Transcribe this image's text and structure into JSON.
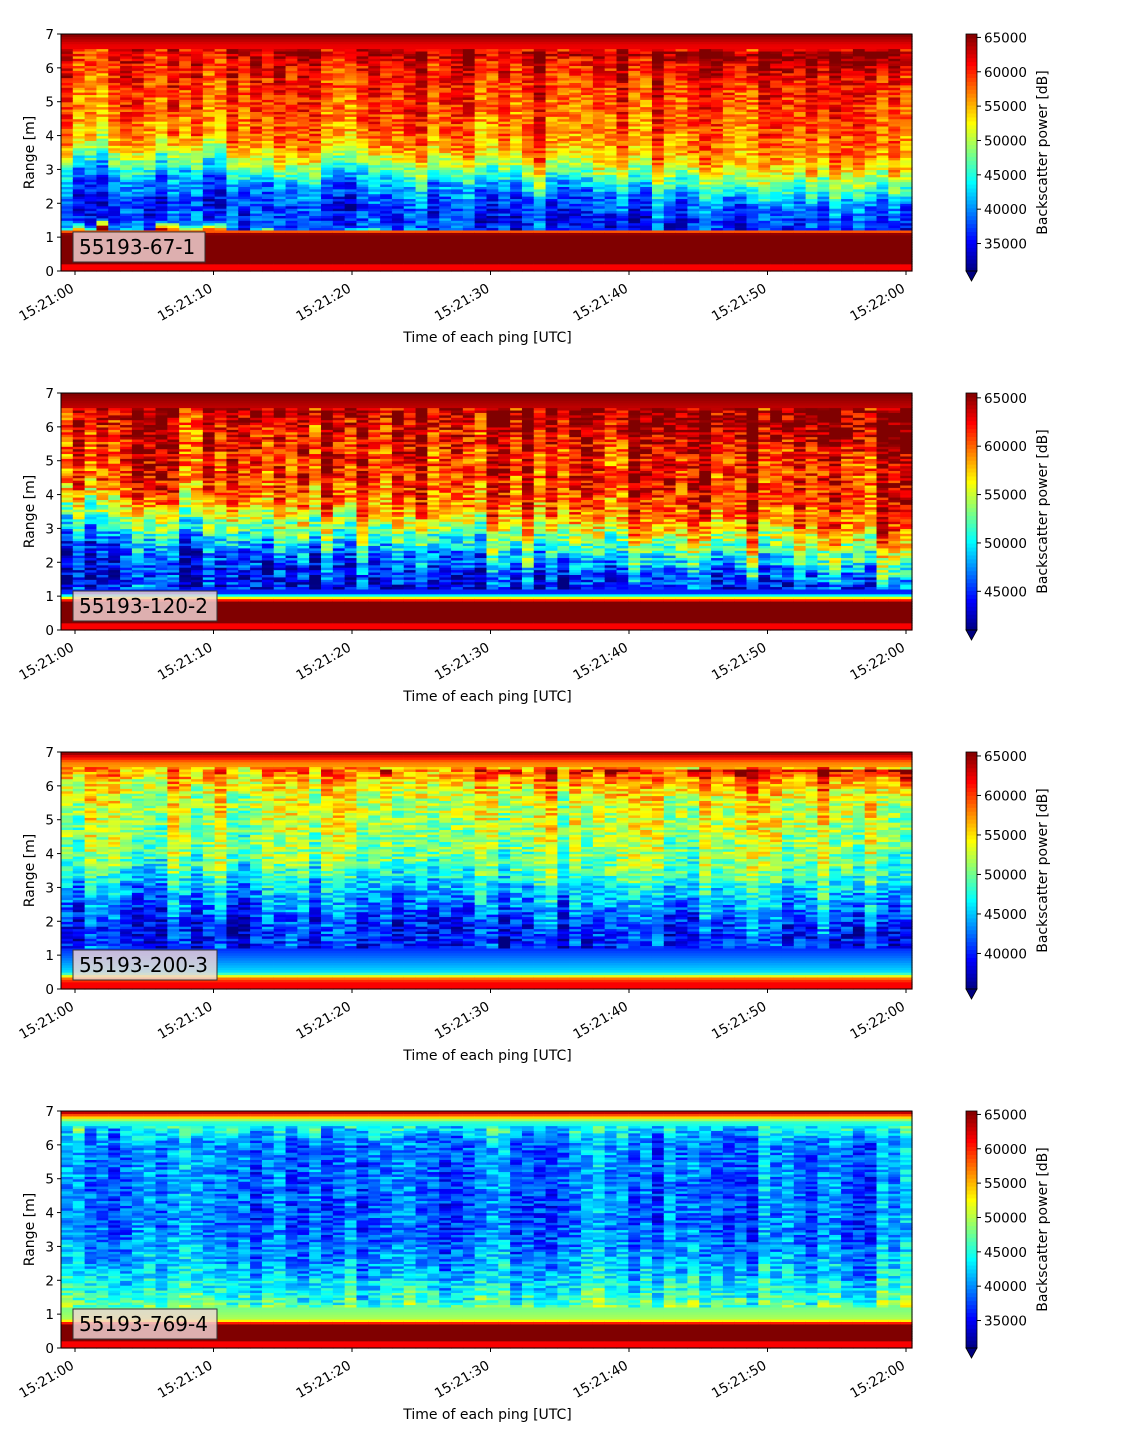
{
  "chart_data": [
    {
      "type": "heatmap",
      "panel_label": "55193-67-1",
      "xlabel": "Time of each ping [UTC]",
      "ylabel": "Range [m]",
      "x_range": [
        "15:21:00",
        "15:22:00"
      ],
      "x_ticks": [
        "15:21:00",
        "15:21:10",
        "15:21:20",
        "15:21:30",
        "15:21:40",
        "15:21:50",
        "15:22:00"
      ],
      "ylim": [
        0,
        7
      ],
      "y_ticks": [
        0,
        1,
        2,
        3,
        4,
        5,
        6,
        7
      ],
      "colormap": "jet",
      "colorbar": {
        "label": "Backscatter power [dB]",
        "vmin": 31000,
        "vmax": 65500,
        "ticks": [
          35000,
          40000,
          45000,
          50000,
          55000,
          60000,
          65000
        ],
        "extend": "min"
      },
      "profile": [
        {
          "range": 0.25,
          "value": 65500
        },
        {
          "range": 1.1,
          "value": 65500
        },
        {
          "range": 1.4,
          "value": 38000
        },
        {
          "range": 2.0,
          "value": 36000
        },
        {
          "range": 2.8,
          "value": 40000
        },
        {
          "range": 3.3,
          "value": 47000
        },
        {
          "range": 4.0,
          "value": 56000
        },
        {
          "range": 5.0,
          "value": 58500
        },
        {
          "range": 6.0,
          "value": 60000
        },
        {
          "range": 6.7,
          "value": 62000
        },
        {
          "range": 7.0,
          "value": 65500
        }
      ],
      "layer_boundary_start_m": 3.2,
      "layer_boundary_end_m": 2.3
    },
    {
      "type": "heatmap",
      "panel_label": "55193-120-2",
      "xlabel": "Time of each ping [UTC]",
      "ylabel": "Range [m]",
      "x_range": [
        "15:21:00",
        "15:22:00"
      ],
      "x_ticks": [
        "15:21:00",
        "15:21:10",
        "15:21:20",
        "15:21:30",
        "15:21:40",
        "15:21:50",
        "15:22:00"
      ],
      "ylim": [
        0,
        7
      ],
      "y_ticks": [
        0,
        1,
        2,
        3,
        4,
        5,
        6,
        7
      ],
      "colormap": "jet",
      "colorbar": {
        "label": "Backscatter power [dB]",
        "vmin": 41000,
        "vmax": 65500,
        "ticks": [
          45000,
          50000,
          55000,
          60000,
          65000
        ],
        "extend": "min"
      },
      "profile": [
        {
          "range": 0.25,
          "value": 65500
        },
        {
          "range": 0.85,
          "value": 65500
        },
        {
          "range": 1.1,
          "value": 45000
        },
        {
          "range": 1.8,
          "value": 44000
        },
        {
          "range": 2.6,
          "value": 47000
        },
        {
          "range": 3.3,
          "value": 53000
        },
        {
          "range": 4.2,
          "value": 60000
        },
        {
          "range": 5.2,
          "value": 62000
        },
        {
          "range": 6.2,
          "value": 62500
        },
        {
          "range": 7.0,
          "value": 65500
        }
      ],
      "layer_boundary_start_m": 3.2,
      "layer_boundary_end_m": 2.0
    },
    {
      "type": "heatmap",
      "panel_label": "55193-200-3",
      "xlabel": "Time of each ping [UTC]",
      "ylabel": "Range [m]",
      "x_range": [
        "15:21:00",
        "15:22:00"
      ],
      "x_ticks": [
        "15:21:00",
        "15:21:10",
        "15:21:20",
        "15:21:30",
        "15:21:40",
        "15:21:50",
        "15:22:00"
      ],
      "ylim": [
        0,
        7
      ],
      "y_ticks": [
        0,
        1,
        2,
        3,
        4,
        5,
        6,
        7
      ],
      "colormap": "jet",
      "colorbar": {
        "label": "Backscatter power [dB]",
        "vmin": 35500,
        "vmax": 65500,
        "ticks": [
          40000,
          45000,
          50000,
          55000,
          60000,
          65000
        ],
        "extend": "min"
      },
      "profile": [
        {
          "range": 0.1,
          "value": 62000
        },
        {
          "range": 0.3,
          "value": 60000
        },
        {
          "range": 0.5,
          "value": 46000
        },
        {
          "range": 1.2,
          "value": 40500
        },
        {
          "range": 2.0,
          "value": 40000
        },
        {
          "range": 3.0,
          "value": 44000
        },
        {
          "range": 4.0,
          "value": 50000
        },
        {
          "range": 5.0,
          "value": 52000
        },
        {
          "range": 6.0,
          "value": 53500
        },
        {
          "range": 6.7,
          "value": 58000
        },
        {
          "range": 7.0,
          "value": 65500
        }
      ],
      "layer_boundary_start_m": 3.4,
      "layer_boundary_end_m": 2.8
    },
    {
      "type": "heatmap",
      "panel_label": "55193-769-4",
      "xlabel": "Time of each ping [UTC]",
      "ylabel": "Range [m]",
      "x_range": [
        "15:21:00",
        "15:22:00"
      ],
      "x_ticks": [
        "15:21:00",
        "15:21:10",
        "15:21:20",
        "15:21:30",
        "15:21:40",
        "15:21:50",
        "15:22:00"
      ],
      "ylim": [
        0,
        7
      ],
      "y_ticks": [
        0,
        1,
        2,
        3,
        4,
        5,
        6,
        7
      ],
      "colormap": "jet",
      "colorbar": {
        "label": "Backscatter power [dB]",
        "vmin": 31000,
        "vmax": 65500,
        "ticks": [
          35000,
          40000,
          45000,
          50000,
          55000,
          60000,
          65000
        ],
        "extend": "min"
      },
      "profile": [
        {
          "range": 0.25,
          "value": 65500
        },
        {
          "range": 0.7,
          "value": 65500
        },
        {
          "range": 0.85,
          "value": 50000
        },
        {
          "range": 1.5,
          "value": 46000
        },
        {
          "range": 2.3,
          "value": 42000
        },
        {
          "range": 3.5,
          "value": 39000
        },
        {
          "range": 5.0,
          "value": 39500
        },
        {
          "range": 6.2,
          "value": 40000
        },
        {
          "range": 6.7,
          "value": 46000
        },
        {
          "range": 7.0,
          "value": 65500
        }
      ],
      "layer_boundary_start_m": 2.5,
      "layer_boundary_end_m": 2.5
    }
  ]
}
